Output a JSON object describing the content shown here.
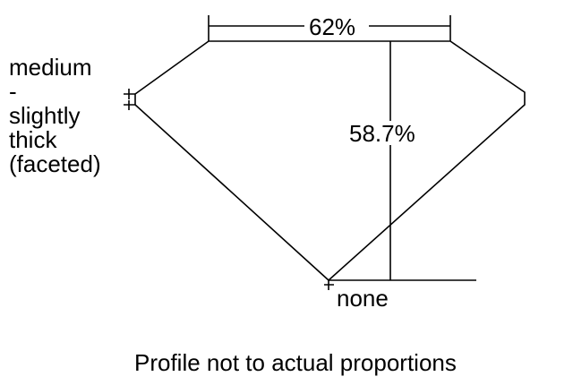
{
  "table_label": "62%",
  "depth_label": "58.7%",
  "girdle_label_lines": [
    "medium",
    "-",
    "slightly",
    "thick",
    "(faceted)"
  ],
  "culet_label": "none",
  "footnote": "Profile not to actual proportions",
  "line_color": "#000000"
}
